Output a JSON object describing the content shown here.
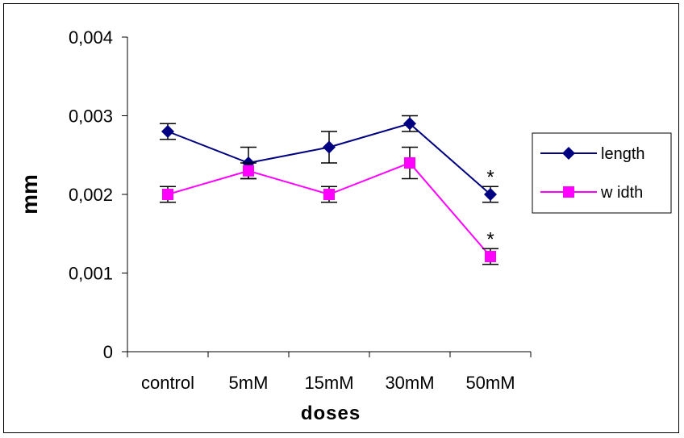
{
  "chart_data": {
    "type": "line",
    "categories": [
      "control",
      "5mM",
      "15mM",
      "30mM",
      "50mM"
    ],
    "xlabel": "doses",
    "ylabel": "mm",
    "ylim": [
      0,
      0.004
    ],
    "yticks": [
      "0",
      "0,001",
      "0,002",
      "0,003",
      "0,004"
    ],
    "grid": false,
    "legend_position": "right",
    "series": [
      {
        "name": "length",
        "color": "#000080",
        "marker": "diamond",
        "values": [
          0.0028,
          0.0024,
          0.0026,
          0.0029,
          0.002
        ],
        "errors": [
          0.0001,
          0.0002,
          0.0002,
          0.0001,
          0.0001
        ],
        "annotations": [
          "",
          "",
          "",
          "",
          "*"
        ]
      },
      {
        "name": "w idth",
        "color": "#FF00FF",
        "marker": "square",
        "values": [
          0.002,
          0.0023,
          0.002,
          0.0024,
          0.00121
        ],
        "errors": [
          0.0001,
          0.0001,
          0.0001,
          0.0002,
          0.0001
        ],
        "annotations": [
          "",
          "",
          "",
          "",
          "*"
        ]
      }
    ]
  }
}
